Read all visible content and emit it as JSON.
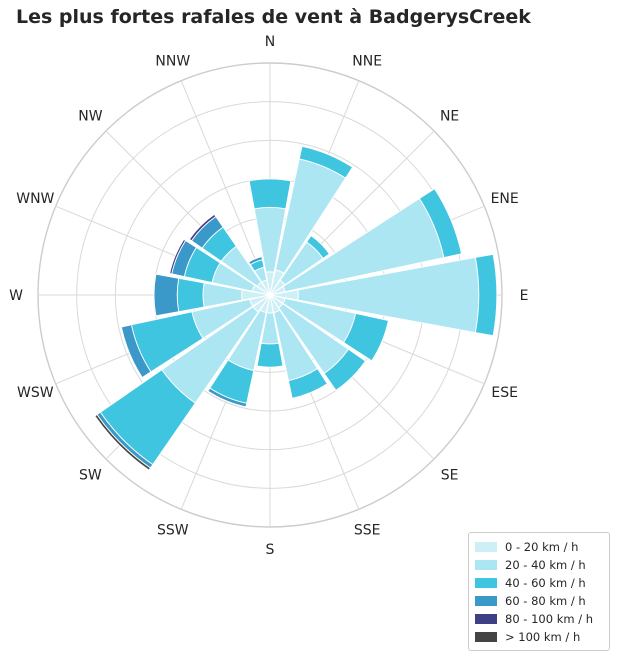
{
  "chart_data": {
    "type": "windrose",
    "title": "Les plus fortes rafales de vent à BadgerysCreek",
    "directions": [
      "N",
      "NNE",
      "NE",
      "ENE",
      "E",
      "ESE",
      "SE",
      "SSE",
      "S",
      "SSW",
      "SW",
      "WSW",
      "W",
      "WNW",
      "NW",
      "NNW"
    ],
    "speed_bins": [
      {
        "label": "0 - 20 km / h",
        "color": "#cfeff7"
      },
      {
        "label": "20 - 40 km / h",
        "color": "#ade6f3"
      },
      {
        "label": "40 - 60 km / h",
        "color": "#3fc5e0"
      },
      {
        "label": "60 - 80 km / h",
        "color": "#3b99c9"
      },
      {
        "label": "80 - 100 km / h",
        "color": "#3f3f86"
      },
      {
        "label": "> 100 km / h",
        "color": "#444444"
      }
    ],
    "series": [
      {
        "direction": "N",
        "values": [
          0.45,
          1.25,
          0.55,
          0,
          0,
          0
        ]
      },
      {
        "direction": "NNE",
        "values": [
          0.5,
          2.2,
          0.25,
          0,
          0,
          0
        ]
      },
      {
        "direction": "NE",
        "values": [
          0.35,
          0.9,
          0.15,
          0,
          0,
          0
        ]
      },
      {
        "direction": "ENE",
        "values": [
          0.3,
          3.15,
          0.35,
          0,
          0,
          0
        ]
      },
      {
        "direction": "E",
        "values": [
          0.55,
          3.5,
          0.35,
          0,
          0,
          0
        ]
      },
      {
        "direction": "ESE",
        "values": [
          0.3,
          1.4,
          0.65,
          0,
          0,
          0
        ]
      },
      {
        "direction": "SE",
        "values": [
          0.3,
          1.55,
          0.4,
          0,
          0,
          0
        ]
      },
      {
        "direction": "SSE",
        "values": [
          0.35,
          1.35,
          0.35,
          0,
          0,
          0
        ]
      },
      {
        "direction": "S",
        "values": [
          0.35,
          0.6,
          0.45,
          0,
          0,
          0
        ]
      },
      {
        "direction": "SSW",
        "values": [
          0.35,
          1.15,
          0.65,
          0.07,
          0,
          0
        ]
      },
      {
        "direction": "SW",
        "values": [
          0.4,
          2.15,
          1.45,
          0.08,
          0,
          0.05
        ]
      },
      {
        "direction": "WSW",
        "values": [
          0.4,
          1.15,
          1.2,
          0.2,
          0,
          0
        ]
      },
      {
        "direction": "W",
        "values": [
          0.55,
          0.75,
          0.5,
          0.45,
          0,
          0
        ]
      },
      {
        "direction": "WNW",
        "values": [
          0.35,
          0.8,
          0.55,
          0.25,
          0.04,
          0
        ]
      },
      {
        "direction": "NW",
        "values": [
          0.3,
          0.85,
          0.45,
          0.25,
          0.05,
          0
        ]
      },
      {
        "direction": "NNW",
        "values": [
          0.3,
          0.25,
          0.15,
          0.06,
          0,
          0
        ]
      }
    ],
    "radial_range": [
      0,
      4.5
    ],
    "radial_gridlines": [
      0.75,
      1.5,
      2.25,
      3.0,
      3.75,
      4.5
    ],
    "grid": true,
    "legend_position": "bottom-right"
  }
}
